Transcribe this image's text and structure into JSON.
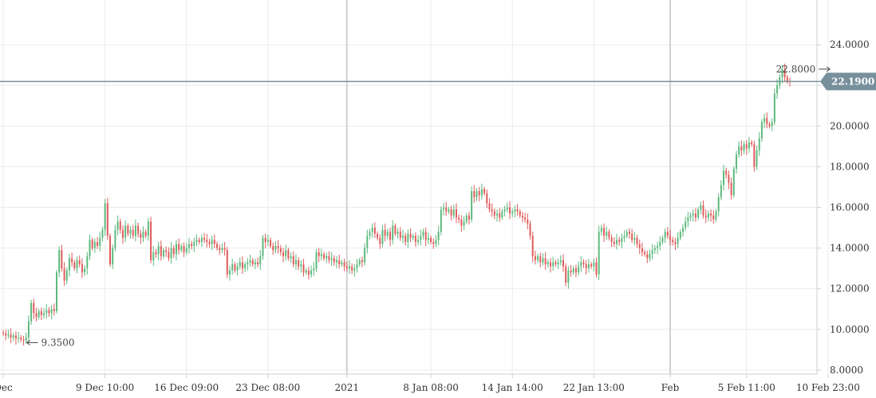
{
  "chart_data": {
    "type": "candlestick",
    "ylim": [
      7.8,
      26.2
    ],
    "y_ticks": [
      "8.0000",
      "10.0000",
      "12.0000",
      "14.0000",
      "16.0000",
      "18.0000",
      "20.0000",
      "22.0000",
      "24.0000"
    ],
    "y_tick_values": [
      8,
      10,
      12,
      14,
      16,
      18,
      20,
      22,
      24
    ],
    "x_ticks": [
      "Dec",
      "9 Dec 10:00",
      "16 Dec 09:00",
      "23 Dec 08:00",
      "2021",
      "8 Jan 08:00",
      "14 Jan 14:00",
      "22 Jan 13:00",
      "Feb",
      "5 Feb 11:00",
      "10 Feb 23:00"
    ],
    "x_tick_index": [
      0,
      40,
      72,
      104,
      135,
      168,
      200,
      232,
      262,
      292,
      324
    ],
    "major_ticks": [
      "2021",
      "Feb"
    ],
    "grid": true,
    "current_price": {
      "value": 22.19,
      "label": "22.1900",
      "color": "#78909c"
    },
    "annotations": [
      {
        "label": "22.8000",
        "value": 22.8,
        "index": 326,
        "side": "left"
      },
      {
        "label": "9.3500",
        "value": 9.35,
        "index": 8,
        "side": "right"
      }
    ],
    "up_color": "#5bb97c",
    "down_color": "#e05a5a",
    "candles_close": [
      9.8,
      9.7,
      9.75,
      9.6,
      9.7,
      9.55,
      9.6,
      9.5,
      9.45,
      9.6,
      10.4,
      11.3,
      10.8,
      10.6,
      10.9,
      10.7,
      10.8,
      10.95,
      10.8,
      11.0,
      10.9,
      12.8,
      13.9,
      13.0,
      12.4,
      12.9,
      13.5,
      13.3,
      13.0,
      13.4,
      13.2,
      12.8,
      13.0,
      13.6,
      14.4,
      14.0,
      14.3,
      14.1,
      14.5,
      14.9,
      16.2,
      14.6,
      13.2,
      14.0,
      14.9,
      15.3,
      14.9,
      14.5,
      15.1,
      14.7,
      14.9,
      14.6,
      15.1,
      14.7,
      14.5,
      14.8,
      14.6,
      15.3,
      13.4,
      13.8,
      13.7,
      14.1,
      13.6,
      13.9,
      13.8,
      13.5,
      14.0,
      13.7,
      14.2,
      13.9,
      14.1,
      13.8,
      14.0,
      14.2,
      14.1,
      14.3,
      14.4,
      14.3,
      14.5,
      14.4,
      14.3,
      14.2,
      14.4,
      14.2,
      14.0,
      13.9,
      14.0,
      13.9,
      12.7,
      12.9,
      13.2,
      12.9,
      13.1,
      13.3,
      13.0,
      13.2,
      13.3,
      13.4,
      13.2,
      13.3,
      13.2,
      13.6,
      14.5,
      14.3,
      14.4,
      14.1,
      13.9,
      14.1,
      14.0,
      13.8,
      13.6,
      13.9,
      13.5,
      13.6,
      13.2,
      13.4,
      13.1,
      13.2,
      12.8,
      12.9,
      12.7,
      12.9,
      13.0,
      13.8,
      13.6,
      13.7,
      13.5,
      13.6,
      13.4,
      13.5,
      13.3,
      13.4,
      13.2,
      13.3,
      13.1,
      13.0,
      13.1,
      12.9,
      13.0,
      13.2,
      13.4,
      13.3,
      14.0,
      14.6,
      14.8,
      15.0,
      14.7,
      14.5,
      14.2,
      14.9,
      14.6,
      14.8,
      14.4,
      15.1,
      14.7,
      14.8,
      14.5,
      14.6,
      14.3,
      14.7,
      14.5,
      14.6,
      14.3,
      14.4,
      14.6,
      14.8,
      14.4,
      14.5,
      14.3,
      14.2,
      14.4,
      14.8,
      15.9,
      16.0,
      15.8,
      15.9,
      15.6,
      15.9,
      15.5,
      15.4,
      15.1,
      15.3,
      15.6,
      15.4,
      16.8,
      16.5,
      16.8,
      16.6,
      16.9,
      16.7,
      16.2,
      15.9,
      15.8,
      15.6,
      15.7,
      15.5,
      15.8,
      15.9,
      16.0,
      15.7,
      15.8,
      15.9,
      15.8,
      15.6,
      15.5,
      15.4,
      15.2,
      14.6,
      13.6,
      13.4,
      13.6,
      13.3,
      13.5,
      13.2,
      13.3,
      13.1,
      13.3,
      13.2,
      13.3,
      13.4,
      13.1,
      12.3,
      12.9,
      12.8,
      13.0,
      12.8,
      13.1,
      13.3,
      13.2,
      13.0,
      13.2,
      13.1,
      13.3,
      12.7,
      14.8,
      15.0,
      14.6,
      14.8,
      14.5,
      14.3,
      14.2,
      14.4,
      14.3,
      14.5,
      14.6,
      14.8,
      14.7,
      14.4,
      14.5,
      14.2,
      14.0,
      13.8,
      13.7,
      13.5,
      13.7,
      13.9,
      14.0,
      14.1,
      14.3,
      14.5,
      14.8,
      14.6,
      14.4,
      14.3,
      14.2,
      14.5,
      14.8,
      15.0,
      15.3,
      15.5,
      15.6,
      15.7,
      15.5,
      15.9,
      16.1,
      15.6,
      15.5,
      15.7,
      15.6,
      15.4,
      15.8,
      16.5,
      17.1,
      17.8,
      17.6,
      17.2,
      16.6,
      17.9,
      18.6,
      19.0,
      18.8,
      19.1,
      18.9,
      19.2,
      19.1,
      18.0,
      18.8,
      19.4,
      20.2,
      20.4,
      20.1,
      20.0,
      20.2,
      21.6,
      22.0,
      22.4,
      22.8,
      22.4,
      22.2,
      22.19
    ]
  }
}
